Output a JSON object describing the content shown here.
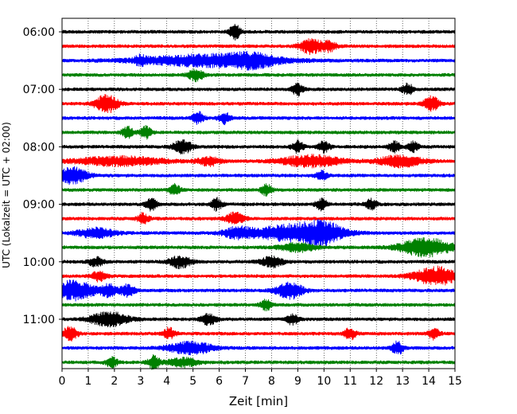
{
  "chart_data": {
    "type": "line",
    "title": "",
    "xlabel": "Zeit  [min]",
    "ylabel": "UTC (Lokalzeit = UTC + 02:00)",
    "xlim": [
      0,
      15
    ],
    "x_ticks": [
      "0",
      "1",
      "2",
      "3",
      "4",
      "5",
      "6",
      "7",
      "8",
      "9",
      "10",
      "11",
      "12",
      "13",
      "14",
      "15"
    ],
    "y_ticks": [
      {
        "label": "06:00",
        "row": 0
      },
      {
        "label": "07:00",
        "row": 4
      },
      {
        "label": "08:00",
        "row": 8
      },
      {
        "label": "09:00",
        "row": 12
      },
      {
        "label": "10:00",
        "row": 16
      },
      {
        "label": "11:00",
        "row": 20
      }
    ],
    "grid": "vertical dotted",
    "row_minutes": 15,
    "row_colors": [
      "#000000",
      "#ff0000",
      "#0000ff",
      "#008000"
    ],
    "rows": [
      {
        "start": "06:00",
        "events": [
          [
            6.6,
            1.6,
            0.15
          ]
        ]
      },
      {
        "start": "06:15",
        "events": [
          [
            9.5,
            1.6,
            0.3
          ],
          [
            10.2,
            1.1,
            0.2
          ]
        ]
      },
      {
        "start": "06:30",
        "events": [
          [
            5.6,
            1.3,
            1.8
          ],
          [
            7.3,
            1.0,
            0.6
          ],
          [
            3.0,
            0.8,
            0.15
          ]
        ]
      },
      {
        "start": "06:45",
        "events": [
          [
            5.1,
            1.3,
            0.2
          ]
        ]
      },
      {
        "start": "07:00",
        "events": [
          [
            9.0,
            1.3,
            0.15
          ],
          [
            13.2,
            1.2,
            0.15
          ]
        ]
      },
      {
        "start": "07:15",
        "events": [
          [
            1.7,
            2.0,
            0.3
          ],
          [
            14.1,
            1.6,
            0.2
          ]
        ]
      },
      {
        "start": "07:30",
        "events": [
          [
            5.2,
            1.3,
            0.15
          ],
          [
            6.2,
            1.3,
            0.15
          ]
        ]
      },
      {
        "start": "07:45",
        "events": [
          [
            2.5,
            1.3,
            0.15
          ],
          [
            3.2,
            1.3,
            0.15
          ]
        ]
      },
      {
        "start": "08:00",
        "events": [
          [
            4.6,
            1.5,
            0.25
          ],
          [
            9.0,
            1.3,
            0.15
          ],
          [
            10.0,
            1.3,
            0.15
          ],
          [
            12.7,
            1.2,
            0.15
          ],
          [
            13.4,
            1.1,
            0.15
          ]
        ]
      },
      {
        "start": "08:15",
        "events": [
          [
            2.2,
            1.0,
            1.2
          ],
          [
            5.6,
            1.0,
            0.3
          ],
          [
            9.5,
            1.3,
            0.8
          ],
          [
            12.9,
            1.3,
            0.6
          ]
        ]
      },
      {
        "start": "08:30",
        "events": [
          [
            0.4,
            1.8,
            0.4
          ],
          [
            9.9,
            1.0,
            0.15
          ]
        ]
      },
      {
        "start": "08:45",
        "events": [
          [
            4.3,
            1.2,
            0.15
          ],
          [
            7.8,
            1.2,
            0.15
          ]
        ]
      },
      {
        "start": "09:00",
        "events": [
          [
            3.4,
            1.3,
            0.15
          ],
          [
            5.9,
            1.3,
            0.15
          ],
          [
            9.9,
            1.2,
            0.15
          ],
          [
            11.8,
            1.1,
            0.15
          ]
        ]
      },
      {
        "start": "09:15",
        "events": [
          [
            3.1,
            1.2,
            0.15
          ],
          [
            6.6,
            1.3,
            0.25
          ]
        ]
      },
      {
        "start": "09:30",
        "events": [
          [
            8.9,
            1.9,
            1.1
          ],
          [
            10.0,
            1.6,
            0.5
          ],
          [
            1.3,
            1.1,
            0.5
          ],
          [
            6.7,
            1.1,
            0.4
          ]
        ]
      },
      {
        "start": "09:45",
        "events": [
          [
            13.9,
            2.0,
            0.7
          ],
          [
            9.0,
            0.9,
            0.5
          ]
        ]
      },
      {
        "start": "10:00",
        "events": [
          [
            4.5,
            1.3,
            0.3
          ],
          [
            8.0,
            1.2,
            0.3
          ],
          [
            1.3,
            1.0,
            0.2
          ]
        ]
      },
      {
        "start": "10:15",
        "events": [
          [
            14.3,
            2.0,
            0.6
          ],
          [
            1.4,
            1.1,
            0.2
          ]
        ]
      },
      {
        "start": "10:30",
        "events": [
          [
            0.4,
            2.2,
            0.6
          ],
          [
            8.7,
            1.8,
            0.35
          ],
          [
            1.8,
            1.3,
            0.2
          ],
          [
            2.5,
            1.3,
            0.2
          ]
        ]
      },
      {
        "start": "10:45",
        "events": [
          [
            7.8,
            1.2,
            0.15
          ]
        ]
      },
      {
        "start": "11:00",
        "events": [
          [
            1.8,
            1.6,
            0.5
          ],
          [
            5.6,
            1.2,
            0.2
          ],
          [
            8.8,
            1.2,
            0.15
          ]
        ]
      },
      {
        "start": "11:15",
        "events": [
          [
            0.3,
            1.5,
            0.2
          ],
          [
            4.1,
            1.3,
            0.15
          ],
          [
            11.0,
            1.3,
            0.15
          ],
          [
            14.2,
            1.2,
            0.15
          ]
        ]
      },
      {
        "start": "11:30",
        "events": [
          [
            4.9,
            1.4,
            0.6
          ],
          [
            12.8,
            1.5,
            0.15
          ]
        ]
      },
      {
        "start": "11:45",
        "events": [
          [
            3.5,
            1.5,
            0.15
          ],
          [
            1.9,
            1.1,
            0.15
          ],
          [
            4.6,
            1.0,
            0.4
          ]
        ]
      }
    ]
  }
}
